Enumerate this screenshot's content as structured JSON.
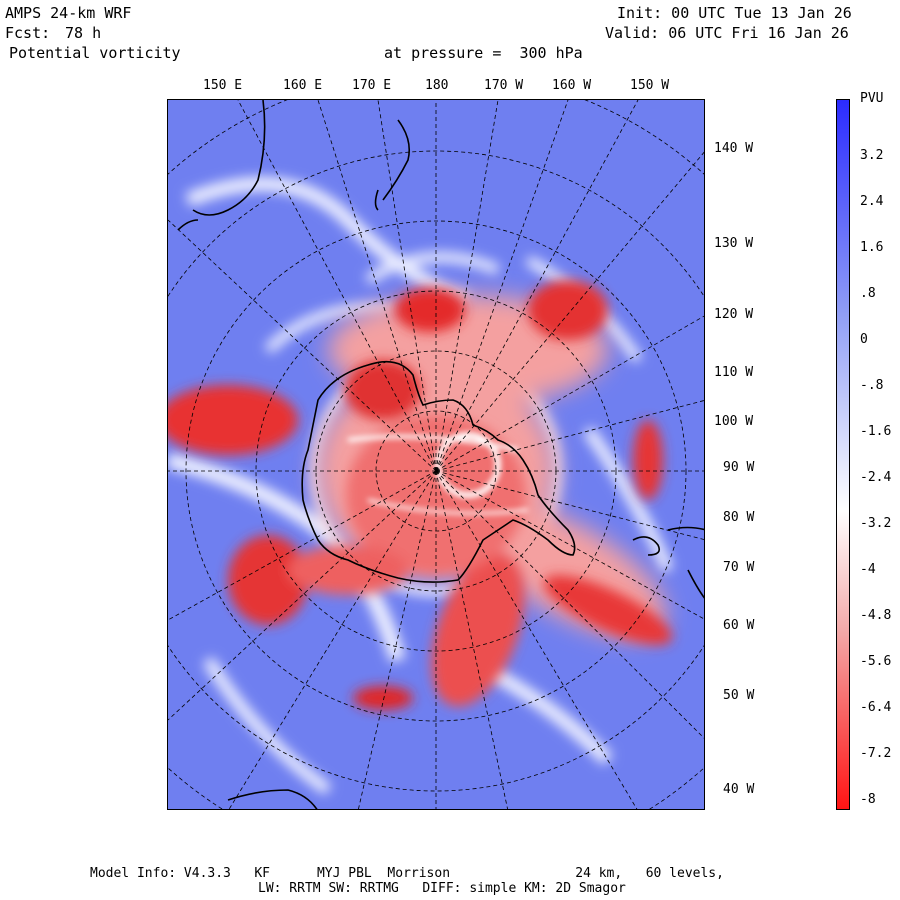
{
  "header": {
    "model": "AMPS 24-km WRF",
    "fcst_label": "Fcst:",
    "fcst_value": "78 h",
    "field": "Potential vorticity",
    "pressure": "at pressure =  300 hPa",
    "init": "Init: 00 UTC Tue 13 Jan 26",
    "valid": "Valid: 06 UTC Fri 16 Jan 26"
  },
  "lon_labels_top": [
    "150 E",
    "160 E",
    "170 E",
    "180",
    "170 W",
    "160 W",
    "150 W"
  ],
  "lon_labels_right": [
    "140 W",
    "130 W",
    "120 W",
    "110 W",
    "100 W",
    "90 W",
    "80 W",
    "70 W",
    "60 W",
    "50 W",
    "40 W"
  ],
  "colorbar": {
    "unit": "PVU",
    "labels": [
      "3.2",
      "2.4",
      "1.6",
      ".8",
      "0",
      "-.8",
      "-1.6",
      "-2.4",
      "-3.2",
      "-4",
      "-4.8",
      "-5.6",
      "-6.4",
      "-7.2",
      "-8"
    ],
    "top_color": "#2b2bff",
    "bottom_color": "#ff1414"
  },
  "footer": {
    "line1": "Model Info: V4.3.3   KF      MYJ PBL  Morrison                24 km,   60 levels,",
    "line2": "LW: RRTM SW: RRTMG   DIFF: simple KM: 2D Smagor"
  }
}
